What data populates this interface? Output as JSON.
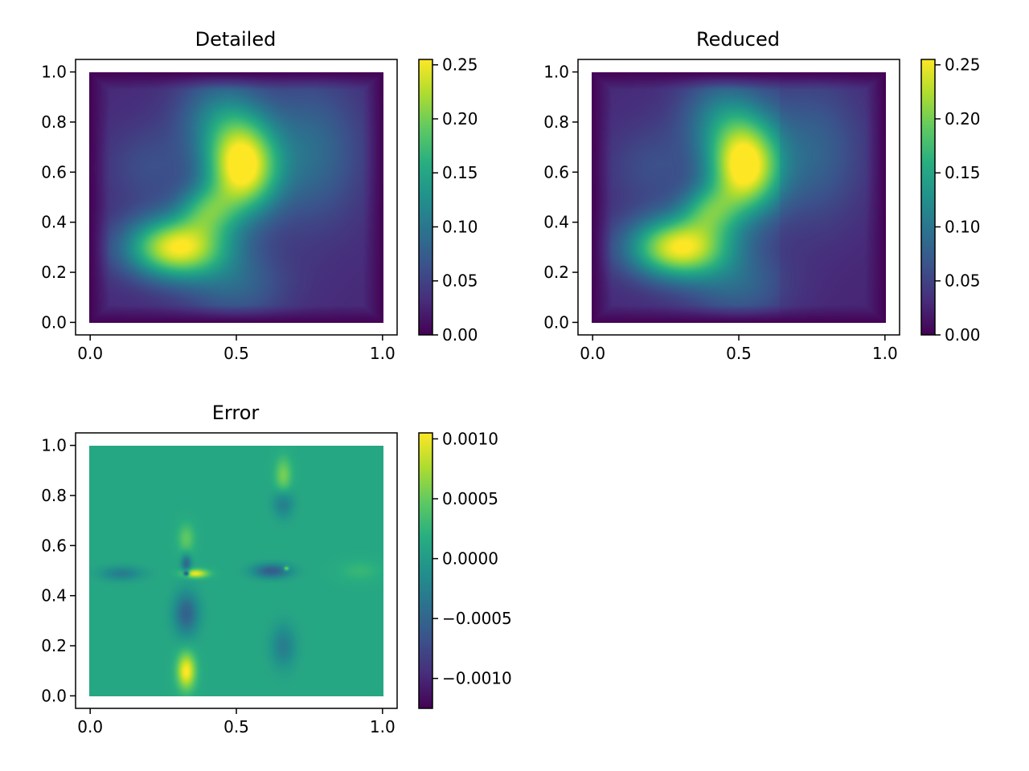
{
  "chart_data": [
    {
      "type": "heatmap",
      "title": "Detailed",
      "field": "detailed",
      "xlim": [
        -0.05,
        1.05
      ],
      "ylim": [
        -0.05,
        1.05
      ],
      "x_ticks": [
        "0.0",
        "0.5",
        "1.0"
      ],
      "x_tick_values": [
        0.0,
        0.5,
        1.0
      ],
      "y_ticks": [
        "0.0",
        "0.2",
        "0.4",
        "0.6",
        "0.8",
        "1.0"
      ],
      "y_tick_values": [
        0.0,
        0.2,
        0.4,
        0.6,
        0.8,
        1.0
      ],
      "colorbar": {
        "colormap": "viridis",
        "range": [
          0.0,
          0.255
        ],
        "ticks": [
          "0.00",
          "0.05",
          "0.10",
          "0.15",
          "0.20",
          "0.25"
        ],
        "tick_values": [
          0.0,
          0.05,
          0.1,
          0.15,
          0.2,
          0.25
        ]
      }
    },
    {
      "type": "heatmap",
      "title": "Reduced",
      "field": "reduced",
      "xlim": [
        -0.05,
        1.05
      ],
      "ylim": [
        -0.05,
        1.05
      ],
      "x_ticks": [
        "0.0",
        "0.5",
        "1.0"
      ],
      "x_tick_values": [
        0.0,
        0.5,
        1.0
      ],
      "y_ticks": [
        "0.0",
        "0.2",
        "0.4",
        "0.6",
        "0.8",
        "1.0"
      ],
      "y_tick_values": [
        0.0,
        0.2,
        0.4,
        0.6,
        0.8,
        1.0
      ],
      "colorbar": {
        "colormap": "viridis",
        "range": [
          0.0,
          0.255
        ],
        "ticks": [
          "0.00",
          "0.05",
          "0.10",
          "0.15",
          "0.20",
          "0.25"
        ],
        "tick_values": [
          0.0,
          0.05,
          0.1,
          0.15,
          0.2,
          0.25
        ]
      }
    },
    {
      "type": "heatmap",
      "title": "Error",
      "field": "error",
      "xlim": [
        -0.05,
        1.05
      ],
      "ylim": [
        -0.05,
        1.05
      ],
      "x_ticks": [
        "0.0",
        "0.5",
        "1.0"
      ],
      "x_tick_values": [
        0.0,
        0.5,
        1.0
      ],
      "y_ticks": [
        "0.0",
        "0.2",
        "0.4",
        "0.6",
        "0.8",
        "1.0"
      ],
      "y_tick_values": [
        0.0,
        0.2,
        0.4,
        0.6,
        0.8,
        1.0
      ],
      "colorbar": {
        "colormap": "viridis",
        "range": [
          -0.00125,
          0.00105
        ],
        "ticks": [
          "0.0010",
          "0.0005",
          "0.0000",
          "−0.0005",
          "−0.0010"
        ],
        "tick_values": [
          0.001,
          0.0005,
          0.0,
          -0.0005,
          -0.001
        ]
      }
    }
  ]
}
